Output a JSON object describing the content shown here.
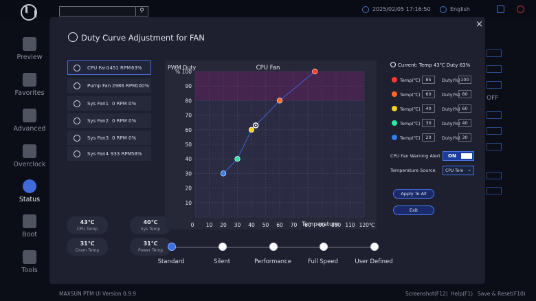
{
  "topbar": {
    "search_placeholder": "",
    "datetime": "2025/02/05 17:16:50",
    "language": "English"
  },
  "sidebar": {
    "items": [
      {
        "label": "Preview",
        "icon": "grid-icon",
        "active": false
      },
      {
        "label": "Favorites",
        "icon": "star-icon",
        "active": false
      },
      {
        "label": "Advanced",
        "icon": "wrench-icon",
        "active": false
      },
      {
        "label": "Overclock",
        "icon": "rocket-icon",
        "active": false
      },
      {
        "label": "Status",
        "icon": "eye-icon",
        "active": true
      },
      {
        "label": "Boot",
        "icon": "boot-icon",
        "active": false
      },
      {
        "label": "Tools",
        "icon": "tools-icon",
        "active": false
      }
    ]
  },
  "background_controls": {
    "toggle_text": "OFF"
  },
  "bottombar": {
    "version": "MAXSUN PTM UI Version 0.9.9",
    "screenshot": "Screenshot(F12)",
    "help": "Help(F1)",
    "save_reset": "Save & Reset(F10)"
  },
  "modal": {
    "title": "Duty Curve Adjustment for FAN",
    "close": "×",
    "fans": [
      {
        "name": "CPU Fan",
        "rpm": "1451 RPM",
        "duty": "63%",
        "selected": true
      },
      {
        "name": "Pump Fan",
        "rpm": "2986 RPM",
        "duty": "100%",
        "selected": false
      },
      {
        "name": "Sys Fan1",
        "rpm": "0 RPM",
        "duty": "0%",
        "selected": false
      },
      {
        "name": "Sys Fan2",
        "rpm": "0 RPM",
        "duty": "0%",
        "selected": false
      },
      {
        "name": "Sys Fan3",
        "rpm": "0 RPM",
        "duty": "0%",
        "selected": false
      },
      {
        "name": "Sys Fan4",
        "rpm": "933 RPM",
        "duty": "58%",
        "selected": false
      }
    ],
    "temps": [
      {
        "value": "43℃",
        "label": "CPU Temp"
      },
      {
        "value": "40℃",
        "label": "Sys Temp"
      },
      {
        "value": "31℃",
        "label": "Dram Temp"
      },
      {
        "value": "31℃",
        "label": "Power Temp"
      }
    ],
    "modes": [
      {
        "label": "Standard",
        "active": true
      },
      {
        "label": "Silent",
        "active": false
      },
      {
        "label": "Performance",
        "active": false
      },
      {
        "label": "Full Speed",
        "active": false
      },
      {
        "label": "User Defined",
        "active": false
      }
    ],
    "current": "Current: Temp 43℃ Duty 63%",
    "points": [
      {
        "temp_label": "Temp(℃)",
        "temp": "85",
        "duty_label": "Duty(%)",
        "duty": "100",
        "color": "#ff3b2f"
      },
      {
        "temp_label": "Temp(℃)",
        "temp": "60",
        "duty_label": "Duty(%)",
        "duty": "80",
        "color": "#ff6a2a"
      },
      {
        "temp_label": "Temp(℃)",
        "temp": "40",
        "duty_label": "Duty(%)",
        "duty": "60",
        "color": "#f2d21a"
      },
      {
        "temp_label": "Temp(℃)",
        "temp": "30",
        "duty_label": "Duty(%)",
        "duty": "40",
        "color": "#2ee8a8"
      },
      {
        "temp_label": "Temp(℃)",
        "temp": "20",
        "duty_label": "Duty(%)",
        "duty": "30",
        "color": "#2f7ff0"
      }
    ],
    "alert_label": "CPU Fan Warning Alert",
    "alert_value": "ON",
    "source_label": "Temperature Source",
    "source_value": "CPU Tem",
    "apply_label": "Apply To All",
    "exit_label": "Exit"
  },
  "chart_data": {
    "type": "line",
    "title": "CPU Fan",
    "xlabel": "Temperature",
    "ylabel": "PWM Duty",
    "yunit": "%",
    "xunit": "℃",
    "xlim": [
      0,
      120
    ],
    "ylim": [
      0,
      100
    ],
    "x_ticks": [
      0,
      10,
      20,
      30,
      40,
      50,
      60,
      70,
      80,
      90,
      100,
      110,
      120
    ],
    "y_ticks": [
      0,
      10,
      20,
      30,
      40,
      50,
      60,
      70,
      80,
      90,
      100
    ],
    "grid": true,
    "points": [
      {
        "x": 20,
        "y": 30,
        "color": "#2f7ff0"
      },
      {
        "x": 30,
        "y": 40,
        "color": "#2ee8a8"
      },
      {
        "x": 40,
        "y": 60,
        "color": "#f2d21a"
      },
      {
        "x": 60,
        "y": 80,
        "color": "#ff6a2a"
      },
      {
        "x": 85,
        "y": 100,
        "color": "#ff3b2f"
      }
    ],
    "current": {
      "x": 43,
      "y": 63
    }
  }
}
